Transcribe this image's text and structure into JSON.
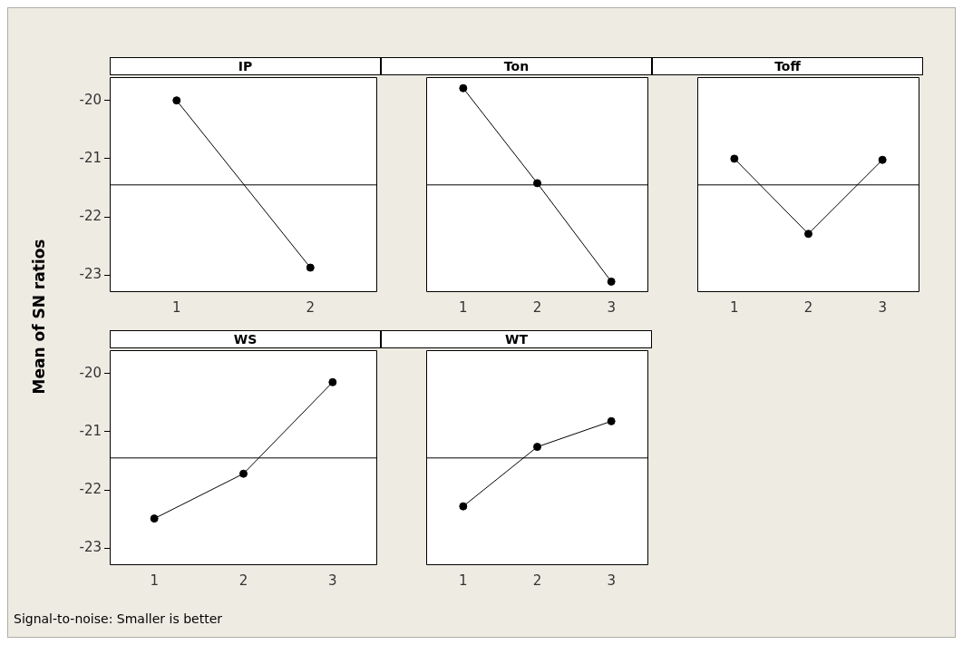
{
  "chart_data": [
    {
      "type": "line",
      "title": "IP",
      "ylabel": "Mean of SN ratios",
      "annotations": [
        "Signal-to-noise: Smaller is better"
      ],
      "categories": [
        "1",
        "2"
      ],
      "series": [
        {
          "color": "#000000",
          "values": [
            -20.0,
            -22.87
          ]
        }
      ],
      "ylim": [
        -23.29,
        -19.6
      ],
      "yticks": [
        -23,
        -22,
        -21,
        -20
      ],
      "ref_lines": [
        {
          "axis": "y",
          "value": -21.45,
          "color": "#000000"
        }
      ],
      "marker": "circle",
      "line_style": "solid"
    },
    {
      "type": "line",
      "title": "Ton",
      "categories": [
        "1",
        "2",
        "3"
      ],
      "series": [
        {
          "color": "#000000",
          "values": [
            -19.79,
            -21.42,
            -23.11
          ]
        }
      ],
      "ylim": [
        -23.29,
        -19.6
      ],
      "yticks": [
        -23,
        -22,
        -21,
        -20
      ],
      "tick_labels": "x",
      "ref_lines": [
        {
          "axis": "y",
          "value": -21.45,
          "color": "#000000"
        }
      ],
      "marker": "circle",
      "line_style": "solid"
    },
    {
      "type": "line",
      "title": "Toff",
      "categories": [
        "1",
        "2",
        "3"
      ],
      "series": [
        {
          "color": "#000000",
          "values": [
            -21.0,
            -22.29,
            -21.02
          ]
        }
      ],
      "ylim": [
        -23.29,
        -19.6
      ],
      "yticks": [
        -23,
        -22,
        -21,
        -20
      ],
      "tick_labels": "x",
      "ref_lines": [
        {
          "axis": "y",
          "value": -21.45,
          "color": "#000000"
        }
      ],
      "marker": "circle",
      "line_style": "solid"
    },
    {
      "type": "line",
      "title": "WS",
      "categories": [
        "1",
        "2",
        "3"
      ],
      "series": [
        {
          "color": "#000000",
          "values": [
            -22.49,
            -21.72,
            -20.15
          ]
        }
      ],
      "ylim": [
        -23.29,
        -19.6
      ],
      "yticks": [
        -23,
        -22,
        -21,
        -20
      ],
      "ref_lines": [
        {
          "axis": "y",
          "value": -21.45,
          "color": "#000000"
        }
      ],
      "marker": "circle",
      "line_style": "solid"
    },
    {
      "type": "line",
      "title": "WT",
      "categories": [
        "1",
        "2",
        "3"
      ],
      "series": [
        {
          "color": "#000000",
          "values": [
            -22.28,
            -21.26,
            -20.82
          ]
        }
      ],
      "ylim": [
        -23.29,
        -19.6
      ],
      "yticks": [
        -23,
        -22,
        -21,
        -20
      ],
      "tick_labels": "x",
      "ref_lines": [
        {
          "axis": "y",
          "value": -21.45,
          "color": "#000000"
        }
      ],
      "marker": "circle",
      "line_style": "solid"
    }
  ]
}
